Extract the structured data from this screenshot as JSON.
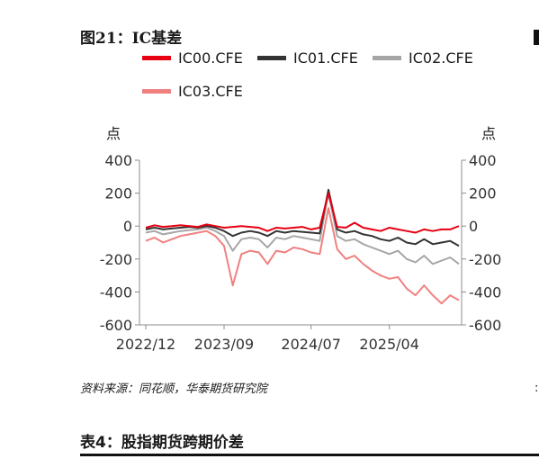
{
  "figure": {
    "title": "图21：IC基差",
    "source": "资料来源：同花顺，华泰期货研究院"
  },
  "table_caption": "表4：股指期货跨期价差",
  "chart_data": {
    "type": "line",
    "title": "图21：IC基差",
    "y_unit_left": "点",
    "y_unit_right": "点",
    "ylim": [
      -600,
      400
    ],
    "yticks": [
      400,
      200,
      0,
      -200,
      -400,
      -600
    ],
    "x_tick_labels": [
      "2022/12",
      "2023/09",
      "2024/07",
      "2025/04"
    ],
    "x": [
      "2022/12",
      "2023/01",
      "2023/02",
      "2023/03",
      "2023/04",
      "2023/05",
      "2023/06",
      "2023/07",
      "2023/08",
      "2023/09",
      "2023/10",
      "2023/11",
      "2023/12",
      "2024/01",
      "2024/02",
      "2024/03",
      "2024/04",
      "2024/05",
      "2024/06",
      "2024/07",
      "2024/08",
      "2024/09",
      "2024/10",
      "2024/11",
      "2024/12",
      "2025/01",
      "2025/02",
      "2025/03",
      "2025/04",
      "2025/05",
      "2025/06",
      "2025/07",
      "2025/08",
      "2025/09",
      "2025/10",
      "2025/11",
      "2025/12"
    ],
    "legend_position": "top",
    "grid": false,
    "series": [
      {
        "name": "IC00.CFE",
        "color": "#e60012",
        "values": [
          -10,
          5,
          -5,
          0,
          5,
          0,
          -5,
          10,
          0,
          -10,
          -5,
          0,
          -5,
          -10,
          -30,
          -10,
          -15,
          -10,
          -5,
          -20,
          -10,
          200,
          -5,
          -10,
          20,
          -10,
          -20,
          -30,
          -10,
          -20,
          -30,
          -40,
          -20,
          -30,
          -20,
          -20,
          0
        ]
      },
      {
        "name": "IC01.CFE",
        "color": "#333333",
        "values": [
          -20,
          -10,
          -20,
          -15,
          -10,
          -5,
          -10,
          0,
          -10,
          -30,
          -60,
          -40,
          -30,
          -40,
          -60,
          -30,
          -40,
          -30,
          -35,
          -40,
          -45,
          220,
          -20,
          -40,
          -30,
          -50,
          -60,
          -80,
          -90,
          -70,
          -100,
          -110,
          -80,
          -110,
          -100,
          -90,
          -120
        ]
      },
      {
        "name": "IC02.CFE",
        "color": "#a6a6a6",
        "values": [
          -40,
          -30,
          -50,
          -40,
          -30,
          -25,
          -20,
          -10,
          -30,
          -60,
          -150,
          -80,
          -70,
          -80,
          -130,
          -70,
          -80,
          -60,
          -70,
          -80,
          -90,
          200,
          -60,
          -90,
          -80,
          -110,
          -130,
          -150,
          -170,
          -150,
          -200,
          -220,
          -180,
          -230,
          -210,
          -190,
          -230
        ]
      },
      {
        "name": "IC03.CFE",
        "color": "#f08080",
        "values": [
          -90,
          -70,
          -100,
          -80,
          -60,
          -50,
          -40,
          -30,
          -60,
          -120,
          -360,
          -170,
          -150,
          -160,
          -230,
          -150,
          -160,
          -130,
          -140,
          -160,
          -170,
          110,
          -140,
          -200,
          -180,
          -230,
          -270,
          -300,
          -320,
          -310,
          -380,
          -420,
          -360,
          -420,
          -470,
          -420,
          -450
        ]
      }
    ]
  }
}
